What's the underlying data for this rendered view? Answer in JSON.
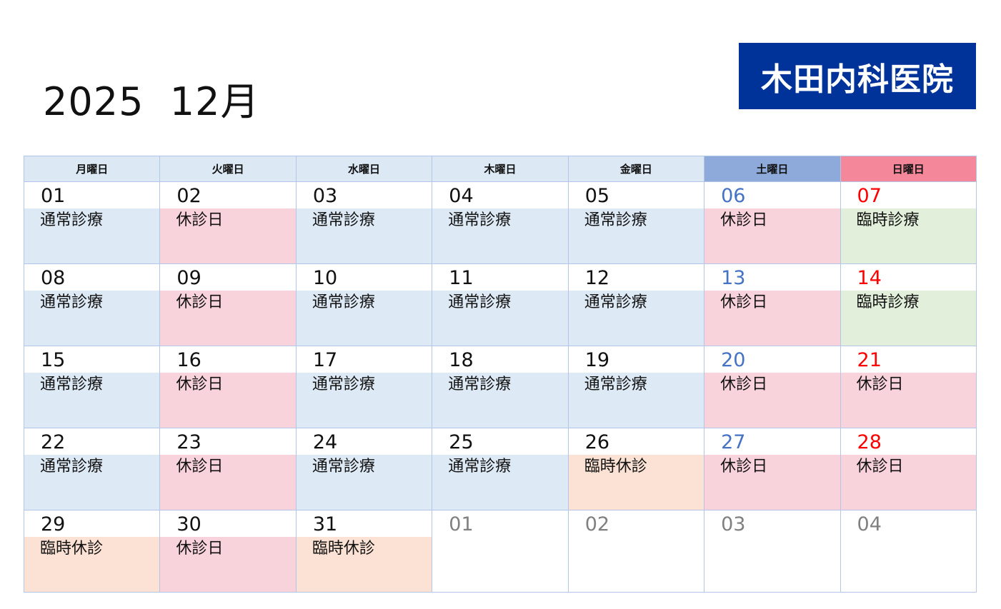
{
  "header": {
    "title": "2025  12月",
    "clinic_name": "木田内科医院"
  },
  "weekdays": [
    "月曜日",
    "火曜日",
    "水曜日",
    "木曜日",
    "金曜日",
    "土曜日",
    "日曜日"
  ],
  "colors": {
    "brand": "#003399",
    "saturday_header": "#8eaadb",
    "sunday_header": "#f4879a",
    "normal": "#dde9f5",
    "closed": "#f9d3db",
    "special": "#e2efda",
    "temp_closed": "#fbe2d5"
  },
  "weeks": [
    [
      {
        "day": "01",
        "status": "通常診療",
        "type": "normal"
      },
      {
        "day": "02",
        "status": "休診日",
        "type": "closed"
      },
      {
        "day": "03",
        "status": "通常診療",
        "type": "normal"
      },
      {
        "day": "04",
        "status": "通常診療",
        "type": "normal"
      },
      {
        "day": "05",
        "status": "通常診療",
        "type": "normal"
      },
      {
        "day": "06",
        "status": "休診日",
        "type": "closed"
      },
      {
        "day": "07",
        "status": "臨時診療",
        "type": "special"
      }
    ],
    [
      {
        "day": "08",
        "status": "通常診療",
        "type": "normal"
      },
      {
        "day": "09",
        "status": "休診日",
        "type": "closed"
      },
      {
        "day": "10",
        "status": "通常診療",
        "type": "normal"
      },
      {
        "day": "11",
        "status": "通常診療",
        "type": "normal"
      },
      {
        "day": "12",
        "status": "通常診療",
        "type": "normal"
      },
      {
        "day": "13",
        "status": "休診日",
        "type": "closed"
      },
      {
        "day": "14",
        "status": "臨時診療",
        "type": "special"
      }
    ],
    [
      {
        "day": "15",
        "status": "通常診療",
        "type": "normal"
      },
      {
        "day": "16",
        "status": "休診日",
        "type": "closed"
      },
      {
        "day": "17",
        "status": "通常診療",
        "type": "normal"
      },
      {
        "day": "18",
        "status": "通常診療",
        "type": "normal"
      },
      {
        "day": "19",
        "status": "通常診療",
        "type": "normal"
      },
      {
        "day": "20",
        "status": "休診日",
        "type": "closed"
      },
      {
        "day": "21",
        "status": "休診日",
        "type": "closed"
      }
    ],
    [
      {
        "day": "22",
        "status": "通常診療",
        "type": "normal"
      },
      {
        "day": "23",
        "status": "休診日",
        "type": "closed"
      },
      {
        "day": "24",
        "status": "通常診療",
        "type": "normal"
      },
      {
        "day": "25",
        "status": "通常診療",
        "type": "normal"
      },
      {
        "day": "26",
        "status": "臨時休診",
        "type": "temp"
      },
      {
        "day": "27",
        "status": "休診日",
        "type": "closed"
      },
      {
        "day": "28",
        "status": "休診日",
        "type": "closed"
      }
    ],
    [
      {
        "day": "29",
        "status": "臨時休診",
        "type": "temp"
      },
      {
        "day": "30",
        "status": "休診日",
        "type": "closed"
      },
      {
        "day": "31",
        "status": "臨時休診",
        "type": "temp"
      },
      {
        "day": "01",
        "status": "",
        "type": "none",
        "other_month": true
      },
      {
        "day": "02",
        "status": "",
        "type": "none",
        "other_month": true
      },
      {
        "day": "03",
        "status": "",
        "type": "none",
        "other_month": true
      },
      {
        "day": "04",
        "status": "",
        "type": "none",
        "other_month": true
      }
    ]
  ]
}
